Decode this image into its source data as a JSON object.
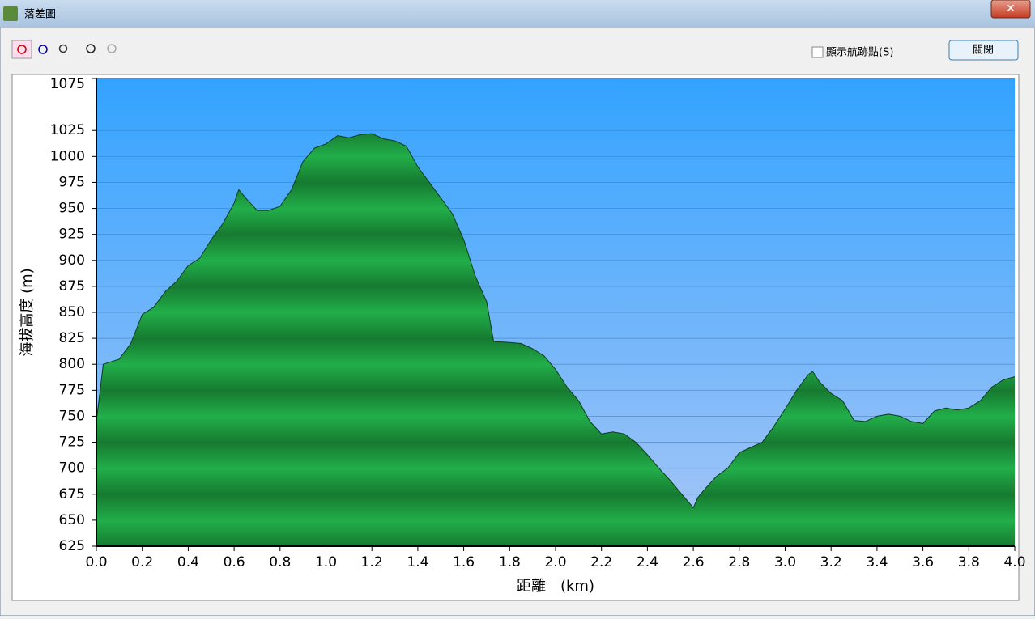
{
  "window": {
    "title": "落差圖"
  },
  "toolbar": {
    "checkbox_label": "顯示航跡點(S)",
    "close_button": "關閉"
  },
  "chart_data": {
    "type": "area",
    "xlabel": "距離　(km)",
    "ylabel": "海拔高度 (m)",
    "x": [
      0.0,
      0.03,
      0.1,
      0.15,
      0.2,
      0.25,
      0.3,
      0.35,
      0.4,
      0.45,
      0.5,
      0.55,
      0.6,
      0.62,
      0.65,
      0.7,
      0.75,
      0.8,
      0.85,
      0.9,
      0.95,
      1.0,
      1.05,
      1.1,
      1.15,
      1.2,
      1.25,
      1.3,
      1.35,
      1.4,
      1.45,
      1.5,
      1.55,
      1.6,
      1.65,
      1.7,
      1.73,
      1.8,
      1.85,
      1.9,
      1.95,
      2.0,
      2.05,
      2.1,
      2.15,
      2.2,
      2.25,
      2.3,
      2.35,
      2.4,
      2.45,
      2.5,
      2.55,
      2.6,
      2.62,
      2.65,
      2.7,
      2.75,
      2.8,
      2.85,
      2.9,
      2.95,
      3.0,
      3.05,
      3.1,
      3.12,
      3.15,
      3.2,
      3.25,
      3.3,
      3.35,
      3.4,
      3.45,
      3.5,
      3.55,
      3.6,
      3.65,
      3.7,
      3.75,
      3.8,
      3.85,
      3.9,
      3.95,
      4.0
    ],
    "values": [
      745,
      800,
      805,
      820,
      848,
      855,
      870,
      880,
      895,
      902,
      920,
      935,
      955,
      968,
      960,
      948,
      948,
      952,
      968,
      995,
      1008,
      1012,
      1020,
      1018,
      1021,
      1022,
      1017,
      1015,
      1010,
      990,
      975,
      960,
      945,
      920,
      885,
      860,
      822,
      821,
      820,
      815,
      808,
      795,
      778,
      765,
      745,
      733,
      735,
      733,
      725,
      713,
      700,
      688,
      675,
      662,
      672,
      680,
      692,
      700,
      715,
      720,
      725,
      740,
      757,
      775,
      790,
      793,
      783,
      772,
      765,
      746,
      745,
      750,
      752,
      750,
      745,
      743,
      755,
      758,
      756,
      758,
      765,
      778,
      785,
      788
    ],
    "color": "#1f9a42",
    "xlim": [
      0,
      4.0
    ],
    "ylim": [
      625,
      1075
    ],
    "xticks": [
      {
        "value": 0,
        "label": "0.0"
      },
      {
        "value": 0.2,
        "label": "0.2"
      },
      {
        "value": 0.4,
        "label": "0.4"
      },
      {
        "value": 0.6,
        "label": "0.6"
      },
      {
        "value": 0.8,
        "label": "0.8"
      },
      {
        "value": 1,
        "label": "1.0"
      },
      {
        "value": 1.2,
        "label": "1.2"
      },
      {
        "value": 1.4,
        "label": "1.4"
      },
      {
        "value": 1.6,
        "label": "1.6"
      },
      {
        "value": 1.8,
        "label": "1.8"
      },
      {
        "value": 2,
        "label": "2.0"
      },
      {
        "value": 2.2,
        "label": "2.2"
      },
      {
        "value": 2.4,
        "label": "2.4"
      },
      {
        "value": 2.6,
        "label": "2.6"
      },
      {
        "value": 2.8,
        "label": "2.8"
      },
      {
        "value": 3,
        "label": "3.0"
      },
      {
        "value": 3.2,
        "label": "3.2"
      },
      {
        "value": 3.4,
        "label": "3.4"
      },
      {
        "value": 3.6,
        "label": "3.6"
      },
      {
        "value": 3.8,
        "label": "3.8"
      },
      {
        "value": 4,
        "label": "4.0"
      }
    ],
    "yticks": [
      625,
      650,
      675,
      700,
      725,
      750,
      775,
      800,
      825,
      850,
      875,
      900,
      925,
      950,
      975,
      1000,
      1025,
      1075
    ],
    "grid": true
  }
}
